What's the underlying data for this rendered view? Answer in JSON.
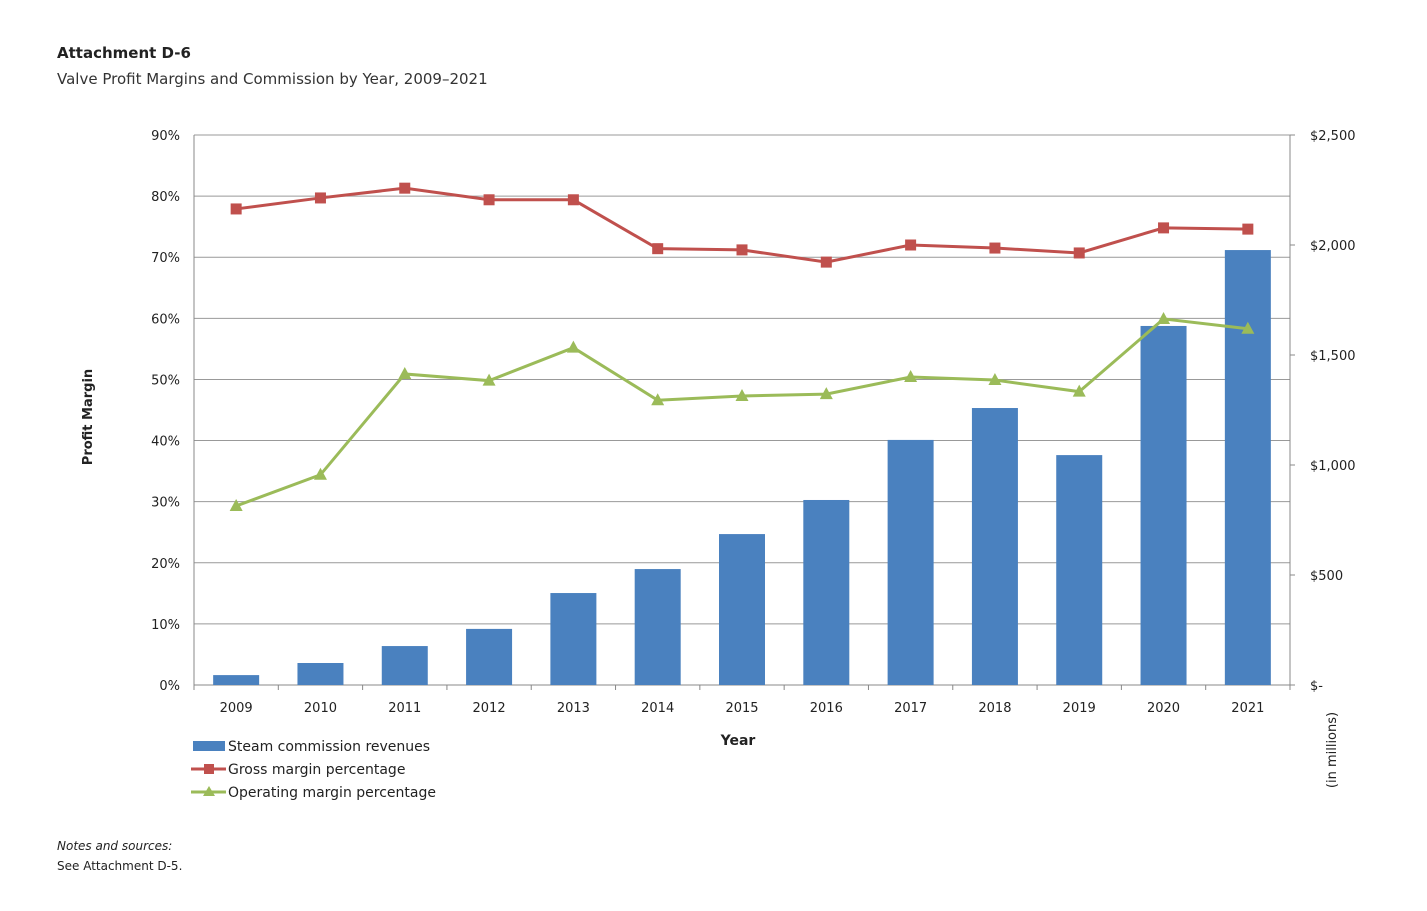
{
  "header": {
    "title": "Attachment D-6",
    "subtitle": "Valve Profit Margins and Commission by Year, 2009–2021"
  },
  "notes": {
    "label": "Notes and sources:",
    "text": "See Attachment D-5."
  },
  "chart_data": {
    "type": "bar+line",
    "xlabel": "Year",
    "ylabel": "Profit Margin",
    "y2label": "(in millions)",
    "categories": [
      "2009",
      "2010",
      "2011",
      "2012",
      "2013",
      "2014",
      "2015",
      "2016",
      "2017",
      "2018",
      "2019",
      "2020",
      "2021"
    ],
    "ylim": [
      0,
      90
    ],
    "yticks": [
      "0%",
      "10%",
      "20%",
      "30%",
      "40%",
      "50%",
      "60%",
      "70%",
      "80%",
      "90%"
    ],
    "y2lim": [
      0,
      2500
    ],
    "y2ticks": [
      "$-",
      "$500",
      "$1,000",
      "$1,500",
      "$2,000",
      "$2,500"
    ],
    "grid": true,
    "legend_placement": "bottom-left",
    "series": [
      {
        "name": "Steam commission revenues",
        "type": "bar",
        "axis": "right",
        "color": "#4a81bf",
        "values": [
          45,
          100,
          177,
          255,
          418,
          527,
          686,
          841,
          1114,
          1259,
          1045,
          1632,
          1977
        ]
      },
      {
        "name": "Gross margin percentage",
        "type": "line",
        "marker": "square",
        "axis": "left",
        "color": "#c0504d",
        "values": [
          77.9,
          79.7,
          81.3,
          79.4,
          79.4,
          71.4,
          71.2,
          69.2,
          72.0,
          71.5,
          70.7,
          74.8,
          74.6
        ]
      },
      {
        "name": "Operating margin percentage",
        "type": "line",
        "marker": "triangle",
        "axis": "left",
        "color": "#9bbb59",
        "values": [
          29.3,
          34.4,
          50.9,
          49.8,
          55.2,
          46.6,
          47.3,
          47.6,
          50.4,
          49.9,
          48.0,
          59.9,
          58.3
        ]
      }
    ]
  }
}
